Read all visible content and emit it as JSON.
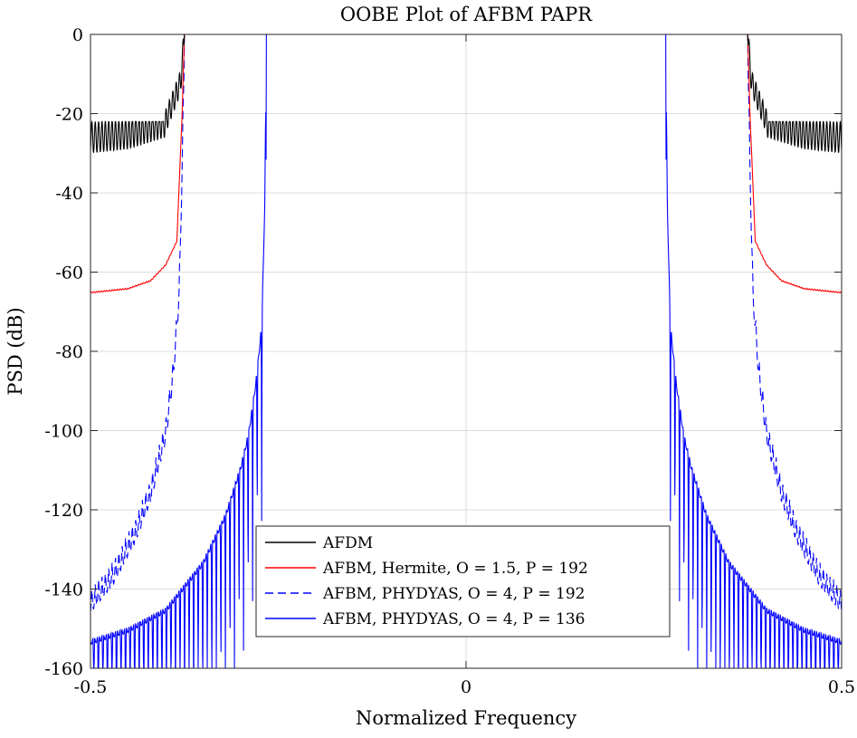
{
  "chart_data": {
    "type": "line",
    "title": "OOBE Plot of AFBM PAPR",
    "xlabel": "Normalized Frequency",
    "ylabel": "PSD (dB)",
    "xlim": [
      -0.5,
      0.5
    ],
    "ylim": [
      -160,
      0
    ],
    "xticks": [
      -0.5,
      0,
      0.5
    ],
    "xtick_labels": [
      "-0.5",
      "0",
      "0.5"
    ],
    "yticks": [
      0,
      -20,
      -40,
      -60,
      -80,
      -100,
      -120,
      -140,
      -160
    ],
    "ytick_labels": [
      "0",
      "-20",
      "-40",
      "-60",
      "-80",
      "-100",
      "-120",
      "-140",
      "-160"
    ],
    "grid": true,
    "legend_position": "lower-center",
    "series": [
      {
        "name": "AFDM",
        "color": "#000000",
        "dash": "solid",
        "passband_edge": 0.375,
        "ripple_band": [
          -30,
          -22
        ],
        "outer_level": -26,
        "values_outside": [
          [
            -0.5,
            -26
          ],
          [
            -0.45,
            -25
          ],
          [
            -0.4,
            -22
          ],
          [
            -0.38,
            -12
          ],
          [
            -0.375,
            0
          ]
        ]
      },
      {
        "name": "AFBM, Hermite, O = 1.5, P = 192",
        "color": "#ff0000",
        "dash": "solid",
        "passband_edge": 0.375,
        "values_outside": [
          [
            -0.5,
            -65
          ],
          [
            -0.45,
            -64
          ],
          [
            -0.42,
            -62
          ],
          [
            -0.4,
            -58
          ],
          [
            -0.385,
            -52
          ],
          [
            -0.382,
            -38
          ],
          [
            -0.378,
            -20
          ],
          [
            -0.375,
            0
          ]
        ]
      },
      {
        "name": "AFBM, PHYDYAS, O = 4, P = 192",
        "color": "#0000ff",
        "dash": "dashed",
        "passband_edge": 0.375,
        "values_outside": [
          [
            -0.5,
            -140
          ],
          [
            -0.47,
            -133
          ],
          [
            -0.44,
            -122
          ],
          [
            -0.42,
            -112
          ],
          [
            -0.4,
            -97
          ],
          [
            -0.39,
            -82
          ],
          [
            -0.382,
            -62
          ],
          [
            -0.378,
            -30
          ],
          [
            -0.375,
            0
          ]
        ]
      },
      {
        "name": "AFBM, PHYDYAS, O = 4, P = 136",
        "color": "#0000ff",
        "dash": "solid",
        "passband_edge": 0.266,
        "values_outside": [
          [
            -0.5,
            -150
          ],
          [
            -0.45,
            -147
          ],
          [
            -0.4,
            -142
          ],
          [
            -0.35,
            -130
          ],
          [
            -0.32,
            -118
          ],
          [
            -0.3,
            -106
          ],
          [
            -0.29,
            -98
          ],
          [
            -0.28,
            -85
          ],
          [
            -0.272,
            -70
          ],
          [
            -0.268,
            -40
          ],
          [
            -0.266,
            0
          ]
        ]
      }
    ]
  }
}
